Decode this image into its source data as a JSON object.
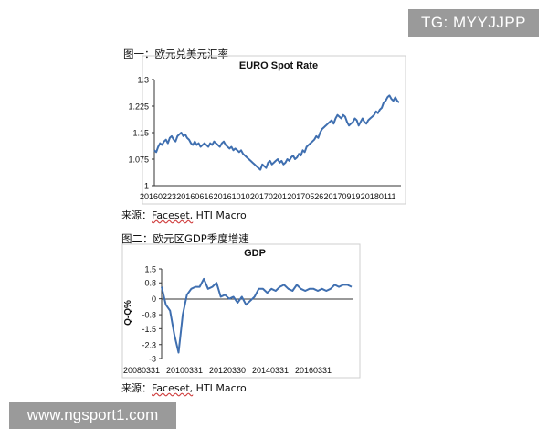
{
  "watermarks": {
    "top_right": "TG: MYYJJPP",
    "bottom_left": "www.ngsport1.com"
  },
  "figure1": {
    "caption": "图一：欧元兑美元汇率",
    "source_prefix": "来源：",
    "source_name": "Faceset,",
    "source_suffix": " HTI Macro"
  },
  "figure2": {
    "caption": "图二：欧元区GDP季度增速",
    "source_prefix": "来源：",
    "source_name": "Faceset,",
    "source_suffix": " HTI Macro"
  },
  "chart_data": [
    {
      "type": "line",
      "title": "EURO Spot Rate",
      "xlabel": "",
      "ylabel": "",
      "x_tick_labels": [
        "20160223",
        "20160616",
        "20161010",
        "20170201",
        "20170526",
        "20170919",
        "20180111"
      ],
      "y_ticks": [
        "1",
        "1.075",
        "1.15",
        "1.225",
        "1.3"
      ],
      "ylim": [
        1.0,
        1.3
      ],
      "grid": false,
      "line_color": "#3f6fb0",
      "series": [
        {
          "values": [
            1.1,
            1.095,
            1.11,
            1.12,
            1.115,
            1.125,
            1.13,
            1.12,
            1.135,
            1.14,
            1.13,
            1.125,
            1.14,
            1.145,
            1.15,
            1.14,
            1.145,
            1.135,
            1.13,
            1.12,
            1.115,
            1.125,
            1.115,
            1.12,
            1.11,
            1.115,
            1.12,
            1.115,
            1.11,
            1.12,
            1.115,
            1.125,
            1.12,
            1.115,
            1.11,
            1.12,
            1.125,
            1.115,
            1.11,
            1.105,
            1.11,
            1.1,
            1.105,
            1.1,
            1.095,
            1.1,
            1.09,
            1.085,
            1.08,
            1.075,
            1.07,
            1.065,
            1.06,
            1.055,
            1.05,
            1.045,
            1.06,
            1.055,
            1.05,
            1.065,
            1.07,
            1.06,
            1.065,
            1.07,
            1.075,
            1.065,
            1.07,
            1.06,
            1.065,
            1.075,
            1.07,
            1.08,
            1.085,
            1.075,
            1.08,
            1.09,
            1.085,
            1.1,
            1.095,
            1.11,
            1.115,
            1.12,
            1.125,
            1.13,
            1.14,
            1.135,
            1.15,
            1.16,
            1.165,
            1.17,
            1.175,
            1.18,
            1.185,
            1.175,
            1.19,
            1.2,
            1.195,
            1.19,
            1.2,
            1.195,
            1.18,
            1.17,
            1.175,
            1.18,
            1.19,
            1.185,
            1.17,
            1.18,
            1.19,
            1.18,
            1.175,
            1.185,
            1.19,
            1.195,
            1.2,
            1.21,
            1.205,
            1.215,
            1.22,
            1.235,
            1.24,
            1.25,
            1.255,
            1.245,
            1.24,
            1.25,
            1.24,
            1.235
          ]
        }
      ]
    },
    {
      "type": "line",
      "title": "GDP",
      "xlabel": "",
      "ylabel": "Q-Q%",
      "x_tick_labels": [
        "20080331",
        "20100331",
        "20120330",
        "20140331",
        "20160331"
      ],
      "y_ticks": [
        "1.5",
        "0.8",
        "0",
        "-0.8",
        "-1.5",
        "-2.3",
        "-3"
      ],
      "ylim": [
        -3.0,
        1.5
      ],
      "grid": false,
      "line_color": "#3f6fb0",
      "series": [
        {
          "values": [
            0.6,
            -0.3,
            -0.6,
            -1.8,
            -2.7,
            -0.8,
            0.2,
            0.5,
            0.6,
            0.6,
            1.0,
            0.5,
            0.6,
            0.8,
            0.1,
            0.2,
            0.0,
            0.1,
            -0.2,
            0.1,
            -0.3,
            -0.1,
            0.1,
            0.5,
            0.5,
            0.3,
            0.5,
            0.4,
            0.6,
            0.7,
            0.5,
            0.4,
            0.7,
            0.5,
            0.4,
            0.5,
            0.5,
            0.4,
            0.5,
            0.4,
            0.5,
            0.7,
            0.6,
            0.7,
            0.7,
            0.6
          ]
        }
      ]
    }
  ]
}
